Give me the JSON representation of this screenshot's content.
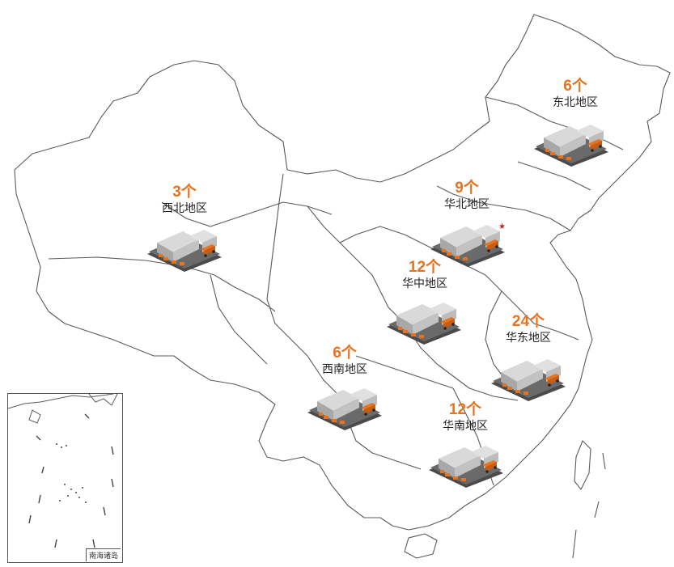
{
  "map": {
    "capital_marker": "red-star-icon",
    "outline_color": "#555555",
    "count_color": "#e8731f"
  },
  "regions": [
    {
      "count": "6个",
      "name": "东北地区"
    },
    {
      "count": "3个",
      "name": "西北地区"
    },
    {
      "count": "9个",
      "name": "华北地区"
    },
    {
      "count": "12个",
      "name": "华中地区"
    },
    {
      "count": "24个",
      "name": "华东地区"
    },
    {
      "count": "6个",
      "name": "西南地区"
    },
    {
      "count": "12个",
      "name": "华南地区"
    }
  ],
  "inset": {
    "label": "南海诸岛"
  },
  "icons": {
    "warehouse": "warehouse-icon"
  }
}
